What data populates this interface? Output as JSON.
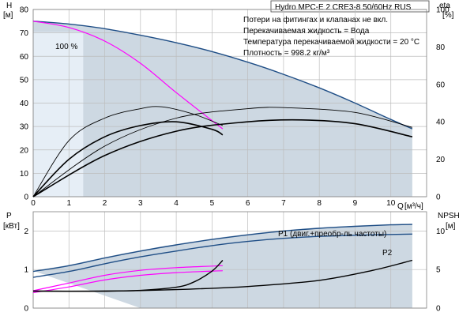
{
  "title": "Hydro MPC-E 2 CRE3-8 50/60Hz RUS",
  "notes": [
    "Потери на фитингах и клапанах не вкл.",
    "Перекачиваемая жидкость = Вода",
    "Температура перекачиваемой жидкости = 20 °C",
    "Плотность = 998.2 кг/м³"
  ],
  "curve_label_100": "100 %",
  "colors": {
    "grid": "#bdbdbd",
    "envelope_fill": "#cdd8e2",
    "light_fill": "#e6eef6",
    "pump_curve": "#1f4e86",
    "system_curve": "#ff00ff",
    "efficiency": "#000000"
  },
  "chart_data": [
    {
      "type": "line",
      "name": "head-efficiency",
      "y_axis_left": {
        "label": "H",
        "unit": "[м]",
        "range": [
          0,
          80
        ],
        "ticks": [
          0,
          10,
          20,
          30,
          40,
          50,
          60,
          70,
          80
        ]
      },
      "y_axis_right": {
        "label": "eta",
        "unit": "[%]",
        "range": [
          0,
          100
        ],
        "ticks": [
          0,
          20,
          40,
          60,
          80,
          100
        ]
      },
      "x_axis": {
        "label": "Q",
        "unit": "[м³/ч]",
        "range": [
          0,
          11
        ],
        "ticks": [
          0,
          1,
          2,
          3,
          4,
          5,
          6,
          7,
          8,
          9,
          10
        ]
      },
      "grid": true,
      "series": [
        {
          "role": "pump_envelope",
          "axis": "left",
          "x": [
            0,
            1,
            2,
            3,
            4,
            5,
            6,
            7,
            8,
            9,
            10,
            10.6
          ],
          "y": [
            75,
            73.8,
            71.8,
            69,
            65.8,
            62,
            57.5,
            52.3,
            46.5,
            40,
            33,
            29
          ]
        },
        {
          "role": "system",
          "label": "100 %",
          "axis": "left",
          "x": [
            0,
            1,
            2,
            3,
            4,
            5,
            5.3
          ],
          "y": [
            75,
            72.3,
            66.5,
            57,
            44.5,
            32.5,
            29
          ]
        },
        {
          "role": "efficiency_min",
          "axis": "right",
          "x": [
            0,
            1,
            2,
            3,
            4,
            5,
            5.3
          ],
          "y": [
            0,
            20,
            32,
            38,
            40,
            36,
            33
          ]
        },
        {
          "role": "efficiency_max",
          "axis": "right",
          "x": [
            0,
            1,
            2,
            3,
            3.6,
            4.5,
            5.3
          ],
          "y": [
            0,
            30,
            42,
            47,
            48,
            44,
            38
          ]
        },
        {
          "role": "efficiency_min",
          "axis": "right",
          "x": [
            0,
            2,
            4,
            6,
            7.5,
            9,
            10.6
          ],
          "y": [
            0,
            22,
            35,
            40,
            41,
            39,
            32
          ]
        },
        {
          "role": "efficiency_max",
          "axis": "right",
          "x": [
            0,
            2,
            4,
            6,
            7.1,
            9,
            10.6
          ],
          "y": [
            0,
            27,
            42,
            47,
            47.5,
            45,
            37
          ]
        }
      ]
    },
    {
      "type": "line",
      "name": "power-npsh",
      "y_axis_left": {
        "label": "P",
        "unit": "[кВт]",
        "range": [
          0,
          2.5
        ],
        "ticks": [
          0,
          1,
          2
        ]
      },
      "y_axis_right": {
        "label": "NPSH",
        "unit": "[м]",
        "range": [
          0,
          12.5
        ],
        "ticks": [
          0,
          5,
          10
        ]
      },
      "x_axis": {
        "range": [
          0,
          11
        ],
        "ticks": [
          0,
          1,
          2,
          3,
          4,
          5,
          6,
          7,
          8,
          9,
          10
        ]
      },
      "grid": true,
      "series": [
        {
          "role": "P1",
          "label": "P1 (двиг.+преобр-ль частоты)",
          "axis": "left",
          "x": [
            0,
            1,
            2,
            3,
            4,
            5,
            6,
            7,
            8,
            9,
            10,
            10.6
          ],
          "y": [
            0.95,
            1.1,
            1.3,
            1.48,
            1.64,
            1.78,
            1.9,
            2.0,
            2.07,
            2.12,
            2.16,
            2.17
          ]
        },
        {
          "role": "P2",
          "label": "P2",
          "axis": "left",
          "x": [
            0,
            1,
            2,
            3,
            4,
            5,
            6,
            7,
            8,
            9,
            10,
            10.6
          ],
          "y": [
            0.8,
            0.95,
            1.15,
            1.33,
            1.48,
            1.62,
            1.73,
            1.81,
            1.86,
            1.89,
            1.91,
            1.92
          ]
        },
        {
          "role": "system_P1",
          "axis": "left",
          "x": [
            0,
            1,
            2,
            3,
            4,
            5.3
          ],
          "y": [
            0.45,
            0.65,
            0.85,
            0.98,
            1.05,
            1.1
          ]
        },
        {
          "role": "system_P2",
          "axis": "left",
          "x": [
            0,
            1,
            2,
            3,
            4,
            5.3
          ],
          "y": [
            0.4,
            0.55,
            0.73,
            0.85,
            0.92,
            0.97
          ]
        },
        {
          "role": "NPSH",
          "axis": "right",
          "x": [
            0,
            2,
            3,
            4,
            4.5,
            5,
            5.3
          ],
          "y": [
            2.2,
            2.2,
            2.3,
            2.7,
            3.4,
            4.8,
            6.2
          ]
        },
        {
          "role": "NPSH",
          "axis": "right",
          "x": [
            0,
            2,
            4,
            6,
            8,
            9.5,
            10.6
          ],
          "y": [
            2.2,
            2.2,
            2.4,
            2.8,
            3.6,
            4.9,
            6.2
          ]
        }
      ]
    }
  ]
}
